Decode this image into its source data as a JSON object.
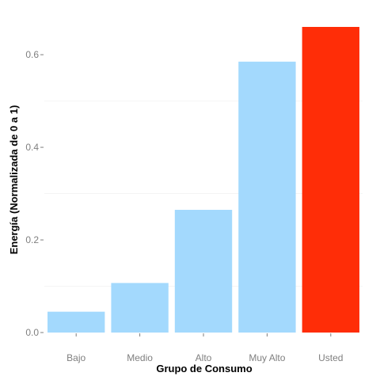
{
  "chart_data": {
    "type": "bar",
    "categories": [
      "Bajo",
      "Medio",
      "Alto",
      "Muy Alto",
      "Usted"
    ],
    "values": [
      0.045,
      0.107,
      0.265,
      0.585,
      0.66
    ],
    "bar_colors": [
      "#a3d9fd",
      "#a3d9fd",
      "#a3d9fd",
      "#a3d9fd",
      "#ff2d07"
    ],
    "xlabel": "Grupo de Consumo",
    "ylabel": "Energía (Normalizada de 0 a 1)",
    "ylim": [
      0,
      0.66
    ],
    "y_ticks": [
      0.0,
      0.2,
      0.4,
      0.6
    ],
    "y_tick_labels": [
      "0.0",
      "0.2",
      "0.4",
      "0.6"
    ],
    "grid": true,
    "legend": "none"
  }
}
